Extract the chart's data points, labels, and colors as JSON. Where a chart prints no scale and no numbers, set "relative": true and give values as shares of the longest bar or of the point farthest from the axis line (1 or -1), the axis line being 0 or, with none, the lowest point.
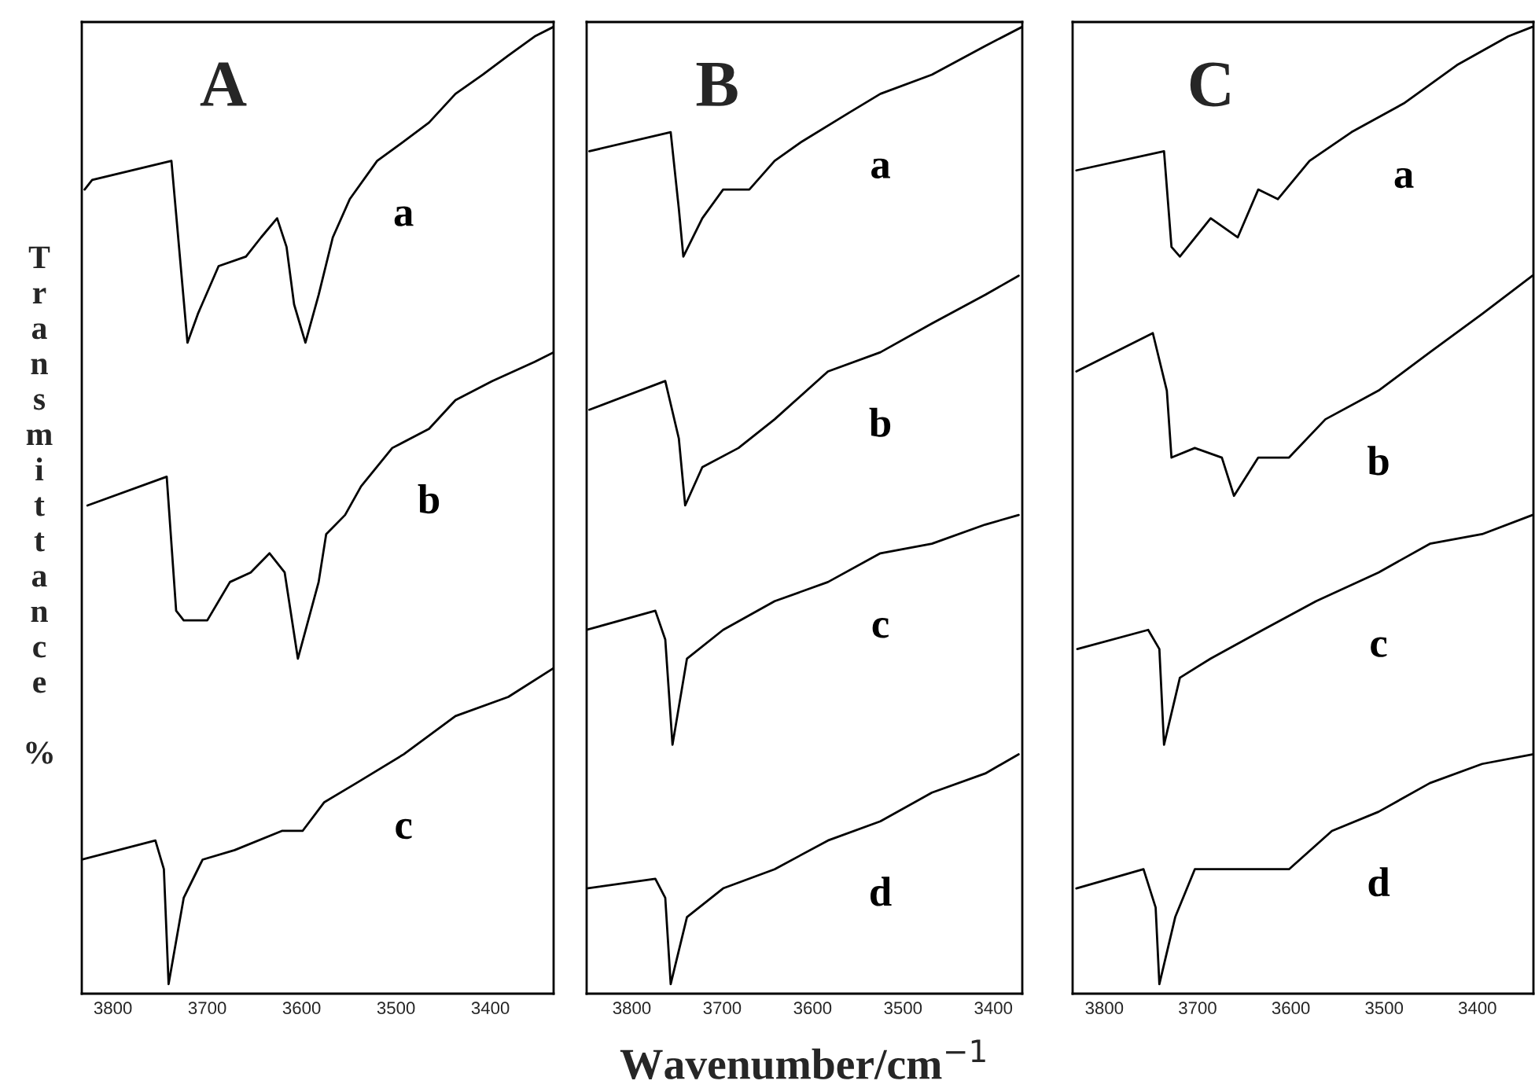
{
  "chart_data": [
    {
      "type": "line",
      "title": "A",
      "ylabel": "Transmittance %",
      "relative": true,
      "xlim": [
        3833,
        3333
      ],
      "xticks": [
        3800,
        3700,
        3600,
        3500,
        3400
      ],
      "grid": false,
      "legend": false,
      "marker": "none",
      "line_style": "solid",
      "tick_labels": "x",
      "series": [
        {
          "name": "a",
          "color": "#000000",
          "x": [
            3830,
            3822,
            3738,
            3721,
            3710,
            3688,
            3659,
            3643,
            3626,
            3616,
            3608,
            3596,
            3582,
            3567,
            3549,
            3520,
            3492,
            3465,
            3437,
            3408,
            3381,
            3353,
            3333
          ],
          "values": [
            0.83,
            0.84,
            0.86,
            0.67,
            0.7,
            0.75,
            0.76,
            0.78,
            0.8,
            0.77,
            0.71,
            0.67,
            0.72,
            0.78,
            0.82,
            0.86,
            0.88,
            0.9,
            0.93,
            0.95,
            0.97,
            0.99,
            1.0
          ]
        },
        {
          "name": "b",
          "color": "#000000",
          "x": [
            3827,
            3743,
            3738,
            3733,
            3725,
            3700,
            3676,
            3654,
            3634,
            3618,
            3604,
            3582,
            3574,
            3554,
            3537,
            3504,
            3465,
            3437,
            3398,
            3353,
            3333
          ],
          "values": [
            0.5,
            0.53,
            0.46,
            0.39,
            0.38,
            0.38,
            0.42,
            0.43,
            0.45,
            0.43,
            0.34,
            0.42,
            0.47,
            0.49,
            0.52,
            0.56,
            0.58,
            0.61,
            0.63,
            0.65,
            0.66
          ]
        },
        {
          "name": "c",
          "color": "#000000",
          "x": [
            3833,
            3755,
            3746,
            3741,
            3725,
            3705,
            3671,
            3621,
            3599,
            3576,
            3542,
            3492,
            3437,
            3381,
            3333
          ],
          "values": [
            0.13,
            0.15,
            0.12,
            0.0,
            0.09,
            0.13,
            0.14,
            0.16,
            0.16,
            0.19,
            0.21,
            0.24,
            0.28,
            0.3,
            0.33
          ]
        }
      ]
    },
    {
      "type": "line",
      "title": "B",
      "xlabel": "Wavenumber/cm$^{−1}$",
      "relative": true,
      "xlim": [
        3850,
        3368
      ],
      "xticks": [
        3800,
        3700,
        3600,
        3500,
        3400
      ],
      "grid": false,
      "legend": false,
      "marker": "none",
      "line_style": "solid",
      "tick_labels": "x",
      "series": [
        {
          "name": "a",
          "color": "#000000",
          "x": [
            3847,
            3757,
            3748,
            3743,
            3722,
            3699,
            3670,
            3642,
            3612,
            3560,
            3525,
            3468,
            3409,
            3368
          ],
          "values": [
            0.87,
            0.89,
            0.81,
            0.76,
            0.8,
            0.83,
            0.83,
            0.86,
            0.88,
            0.91,
            0.93,
            0.95,
            0.98,
            1.0
          ]
        },
        {
          "name": "b",
          "color": "#000000",
          "x": [
            3847,
            3763,
            3748,
            3741,
            3722,
            3682,
            3642,
            3583,
            3525,
            3468,
            3409,
            3372
          ],
          "values": [
            0.6,
            0.63,
            0.57,
            0.5,
            0.54,
            0.56,
            0.59,
            0.64,
            0.66,
            0.69,
            0.72,
            0.74
          ]
        },
        {
          "name": "c",
          "color": "#000000",
          "x": [
            3850,
            3774,
            3763,
            3755,
            3739,
            3699,
            3642,
            3583,
            3525,
            3468,
            3409,
            3372
          ],
          "values": [
            0.37,
            0.39,
            0.36,
            0.25,
            0.34,
            0.37,
            0.4,
            0.42,
            0.45,
            0.46,
            0.48,
            0.49
          ]
        },
        {
          "name": "d",
          "color": "#000000",
          "x": [
            3850,
            3774,
            3763,
            3757,
            3739,
            3699,
            3642,
            3583,
            3525,
            3468,
            3409,
            3372
          ],
          "values": [
            0.1,
            0.11,
            0.09,
            0.0,
            0.07,
            0.1,
            0.12,
            0.15,
            0.17,
            0.2,
            0.22,
            0.24
          ]
        }
      ]
    },
    {
      "type": "line",
      "title": "C",
      "relative": true,
      "xlim": [
        3834,
        3340
      ],
      "xticks": [
        3800,
        3700,
        3600,
        3500,
        3400
      ],
      "grid": false,
      "legend": false,
      "marker": "none",
      "line_style": "solid",
      "tick_labels": "x",
      "series": [
        {
          "name": "a",
          "color": "#000000",
          "x": [
            3830,
            3736,
            3728,
            3719,
            3686,
            3657,
            3635,
            3614,
            3580,
            3535,
            3479,
            3422,
            3367,
            3341
          ],
          "values": [
            0.85,
            0.87,
            0.77,
            0.76,
            0.8,
            0.78,
            0.83,
            0.82,
            0.86,
            0.89,
            0.92,
            0.96,
            0.99,
            1.0
          ]
        },
        {
          "name": "b",
          "color": "#000000",
          "x": [
            3830,
            3748,
            3733,
            3728,
            3703,
            3674,
            3661,
            3635,
            3602,
            3563,
            3506,
            3451,
            3395,
            3341
          ],
          "values": [
            0.64,
            0.68,
            0.62,
            0.55,
            0.56,
            0.55,
            0.51,
            0.55,
            0.55,
            0.59,
            0.62,
            0.66,
            0.7,
            0.74
          ]
        },
        {
          "name": "c",
          "color": "#000000",
          "x": [
            3829,
            3753,
            3741,
            3736,
            3719,
            3686,
            3630,
            3573,
            3506,
            3451,
            3395,
            3341
          ],
          "values": [
            0.35,
            0.37,
            0.35,
            0.25,
            0.32,
            0.34,
            0.37,
            0.4,
            0.43,
            0.46,
            0.47,
            0.49
          ]
        },
        {
          "name": "d",
          "color": "#000000",
          "x": [
            3830,
            3758,
            3745,
            3741,
            3724,
            3703,
            3647,
            3602,
            3556,
            3506,
            3451,
            3395,
            3341
          ],
          "values": [
            0.1,
            0.12,
            0.08,
            0.0,
            0.07,
            0.12,
            0.12,
            0.12,
            0.16,
            0.18,
            0.21,
            0.23,
            0.24
          ]
        }
      ]
    }
  ]
}
